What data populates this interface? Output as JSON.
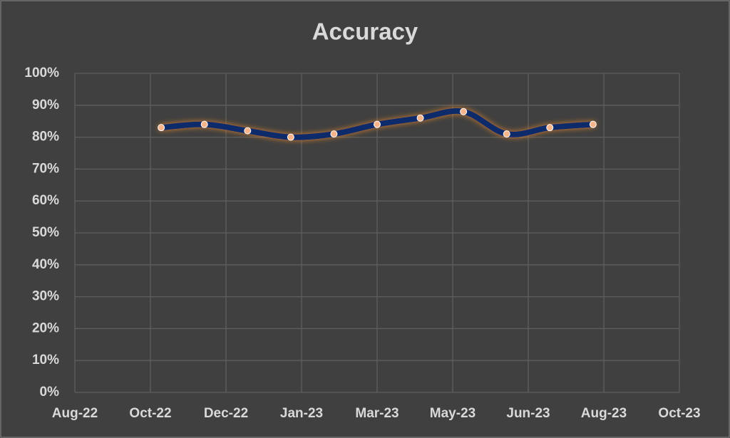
{
  "chart_data": {
    "type": "line",
    "title": "Accuracy",
    "x": [
      "2022-10",
      "2022-11",
      "2022-12",
      "2023-01",
      "2023-02",
      "2023-03",
      "2023-04",
      "2023-05",
      "2023-06",
      "2023-07",
      "2023-08"
    ],
    "series": [
      {
        "name": "Accuracy",
        "color": "#0c2a6b",
        "marker_color": "#f8b58c",
        "values": [
          83,
          84,
          82,
          80,
          81,
          84,
          86,
          88,
          81,
          83,
          84
        ]
      }
    ],
    "xlim": [
      "2022-08",
      "2023-10"
    ],
    "xticks": [
      "Aug-22",
      "Oct-22",
      "Dec-22",
      "Jan-23",
      "Mar-23",
      "May-23",
      "Jun-23",
      "Aug-23",
      "Oct-23"
    ],
    "ylim": [
      0,
      100
    ],
    "yticks": [
      {
        "value": 0,
        "label": "0%"
      },
      {
        "value": 10,
        "label": "10%"
      },
      {
        "value": 20,
        "label": "20%"
      },
      {
        "value": 30,
        "label": "30%"
      },
      {
        "value": 40,
        "label": "40%"
      },
      {
        "value": 50,
        "label": "50%"
      },
      {
        "value": 60,
        "label": "60%"
      },
      {
        "value": 70,
        "label": "70%"
      },
      {
        "value": 80,
        "label": "80%"
      },
      {
        "value": 90,
        "label": "90%"
      },
      {
        "value": 100,
        "label": "100%"
      }
    ],
    "grid": true
  }
}
